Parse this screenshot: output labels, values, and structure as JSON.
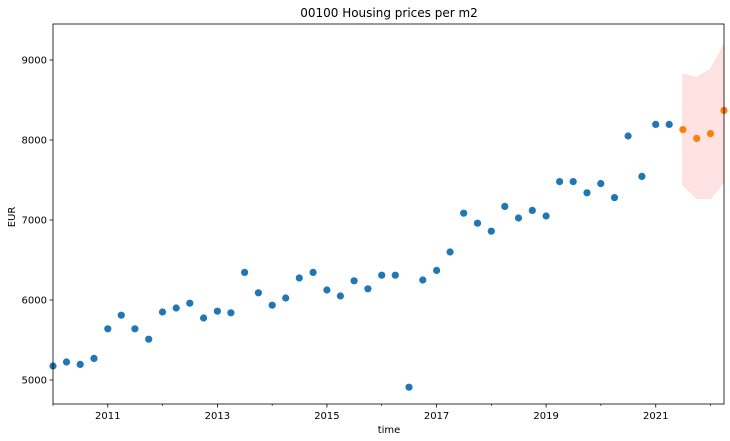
{
  "chart_data": {
    "type": "scatter",
    "title": "00100 Housing prices per m2",
    "xlabel": "time",
    "ylabel": "EUR",
    "xlim": [
      "2010-01-01",
      "2022-04-01"
    ],
    "ylim": [
      4700,
      9450
    ],
    "x_ticks": [
      "2011",
      "2013",
      "2015",
      "2017",
      "2019",
      "2021"
    ],
    "y_ticks": [
      "5000",
      "6000",
      "7000",
      "8000",
      "9000"
    ],
    "grid": false,
    "legend": "none",
    "series": [
      {
        "color": "#1f77b4",
        "points": [
          {
            "x": "2010-01-01",
            "y": 5175
          },
          {
            "x": "2010-04-01",
            "y": 5225
          },
          {
            "x": "2010-07-01",
            "y": 5195
          },
          {
            "x": "2010-10-01",
            "y": 5270
          },
          {
            "x": "2011-01-01",
            "y": 5640
          },
          {
            "x": "2011-04-01",
            "y": 5810
          },
          {
            "x": "2011-07-01",
            "y": 5640
          },
          {
            "x": "2011-10-01",
            "y": 5510
          },
          {
            "x": "2012-01-01",
            "y": 5850
          },
          {
            "x": "2012-04-01",
            "y": 5900
          },
          {
            "x": "2012-07-01",
            "y": 5960
          },
          {
            "x": "2012-10-01",
            "y": 5775
          },
          {
            "x": "2013-01-01",
            "y": 5860
          },
          {
            "x": "2013-04-01",
            "y": 5840
          },
          {
            "x": "2013-07-01",
            "y": 6345
          },
          {
            "x": "2013-10-01",
            "y": 6090
          },
          {
            "x": "2014-01-01",
            "y": 5935
          },
          {
            "x": "2014-04-01",
            "y": 6025
          },
          {
            "x": "2014-07-01",
            "y": 6275
          },
          {
            "x": "2014-10-01",
            "y": 6345
          },
          {
            "x": "2015-01-01",
            "y": 6125
          },
          {
            "x": "2015-04-01",
            "y": 6050
          },
          {
            "x": "2015-07-01",
            "y": 6240
          },
          {
            "x": "2015-10-01",
            "y": 6140
          },
          {
            "x": "2016-01-01",
            "y": 6310
          },
          {
            "x": "2016-04-01",
            "y": 6310
          },
          {
            "x": "2016-07-01",
            "y": 4910
          },
          {
            "x": "2016-10-01",
            "y": 6250
          },
          {
            "x": "2017-01-01",
            "y": 6370
          },
          {
            "x": "2017-04-01",
            "y": 6600
          },
          {
            "x": "2017-07-01",
            "y": 7085
          },
          {
            "x": "2017-10-01",
            "y": 6960
          },
          {
            "x": "2018-01-01",
            "y": 6860
          },
          {
            "x": "2018-04-01",
            "y": 7170
          },
          {
            "x": "2018-07-01",
            "y": 7025
          },
          {
            "x": "2018-10-01",
            "y": 7120
          },
          {
            "x": "2019-01-01",
            "y": 7050
          },
          {
            "x": "2019-04-01",
            "y": 7480
          },
          {
            "x": "2019-07-01",
            "y": 7480
          },
          {
            "x": "2019-10-01",
            "y": 7340
          },
          {
            "x": "2020-01-01",
            "y": 7455
          },
          {
            "x": "2020-04-01",
            "y": 7280
          },
          {
            "x": "2020-07-01",
            "y": 8050
          },
          {
            "x": "2020-10-01",
            "y": 7545
          },
          {
            "x": "2021-01-01",
            "y": 8195
          },
          {
            "x": "2021-04-01",
            "y": 8195
          }
        ]
      },
      {
        "color": "#ff7f0e",
        "points": [
          {
            "x": "2021-07-01",
            "y": 8130
          },
          {
            "x": "2021-10-01",
            "y": 8020
          },
          {
            "x": "2022-01-01",
            "y": 8080
          },
          {
            "x": "2022-04-01",
            "y": 8370
          }
        ]
      }
    ],
    "confidence_band": {
      "color": "#ffcccc",
      "points": [
        {
          "x": "2021-07-01",
          "lower": 7440,
          "upper": 8820
        },
        {
          "x": "2021-10-01",
          "lower": 7270,
          "upper": 8780
        },
        {
          "x": "2022-01-01",
          "lower": 7270,
          "upper": 8880
        },
        {
          "x": "2022-04-01",
          "lower": 7480,
          "upper": 9190
        }
      ]
    }
  }
}
